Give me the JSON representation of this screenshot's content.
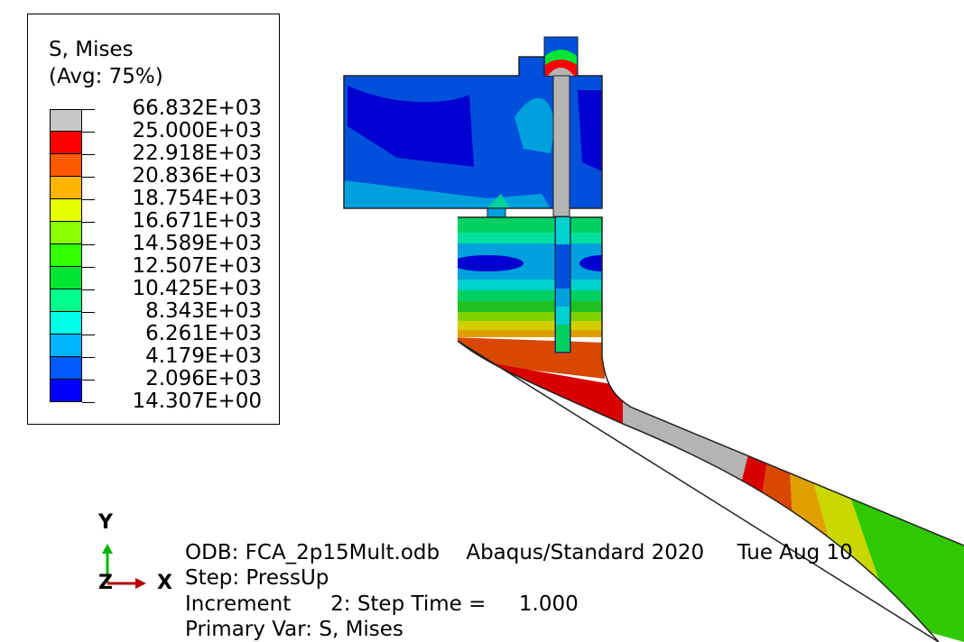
{
  "legend": {
    "title": "S, Mises",
    "subtitle": "(Avg: 75%)",
    "labels": [
      "66.832E+03",
      "25.000E+03",
      "22.918E+03",
      "20.836E+03",
      "18.754E+03",
      "16.671E+03",
      "14.589E+03",
      "12.507E+03",
      "10.425E+03",
      "8.343E+03",
      "6.261E+03",
      "4.179E+03",
      "2.096E+03",
      "14.307E+00"
    ],
    "colors": [
      "#c8c8c8",
      "#ff0000",
      "#ff5a00",
      "#ffb400",
      "#e6ff00",
      "#8cff00",
      "#32ff00",
      "#00e632",
      "#00ff8c",
      "#00ffe6",
      "#00b4ff",
      "#005aff",
      "#0000ff"
    ]
  },
  "triad": {
    "y": "Y",
    "z": "Z",
    "x": "X"
  },
  "info": {
    "line1": "ODB: FCA_2p15Mult.odb    Abaqus/Standard 2020     Tue Aug 10",
    "line2": "Step: PressUp",
    "line3": "Increment      2: Step Time =     1.000",
    "line4": "Primary Var: S, Mises"
  }
}
